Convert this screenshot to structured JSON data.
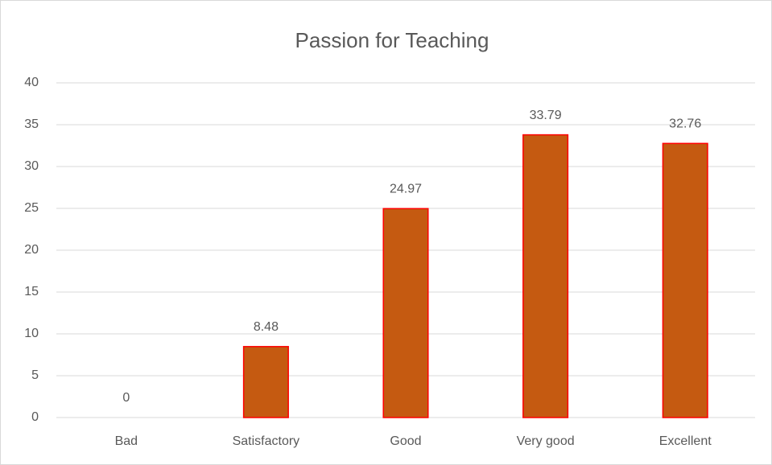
{
  "chart_data": {
    "type": "bar",
    "title": "Passion for Teaching",
    "categories": [
      "Bad",
      "Satisfactory",
      "Good",
      "Very good",
      "Excellent"
    ],
    "values": [
      0,
      8.48,
      24.97,
      33.79,
      32.76
    ],
    "color": "#c55a11",
    "edgecolor": "#ff0000",
    "ylim": [
      0,
      40
    ],
    "yticks": [
      0,
      5,
      10,
      15,
      20,
      25,
      30,
      35,
      40
    ],
    "grid": true
  }
}
